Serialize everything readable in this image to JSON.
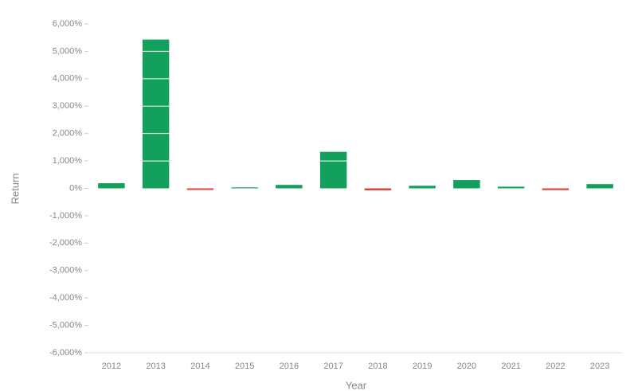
{
  "chart_data": {
    "type": "bar",
    "x_label": "Year",
    "y_label": "Return",
    "categories": [
      "2012",
      "2013",
      "2014",
      "2015",
      "2016",
      "2017",
      "2018",
      "2019",
      "2020",
      "2021",
      "2022",
      "2023"
    ],
    "values": [
      186,
      5429,
      -58,
      35,
      125,
      1331,
      -73,
      95,
      303,
      60,
      -64,
      155
    ],
    "positive_color": "#12a05c",
    "negative_color": "#e0453c",
    "grid_color": "#ffffff",
    "ylim": [
      -6000,
      6000
    ],
    "yticks": [
      {
        "value": -6000,
        "label": "-6,000%"
      },
      {
        "value": -5000,
        "label": "-5,000%"
      },
      {
        "value": -4000,
        "label": "-4,000%"
      },
      {
        "value": -3000,
        "label": "-3,000%"
      },
      {
        "value": -2000,
        "label": "-2,000%"
      },
      {
        "value": -1000,
        "label": "-1,000%"
      },
      {
        "value": 0,
        "label": "0%"
      },
      {
        "value": 1000,
        "label": "1,000%"
      },
      {
        "value": 2000,
        "label": "2,000%"
      },
      {
        "value": 3000,
        "label": "3,000%"
      },
      {
        "value": 4000,
        "label": "4,000%"
      },
      {
        "value": 5000,
        "label": "5,000%"
      },
      {
        "value": 6000,
        "label": "6,000%"
      }
    ],
    "grid": true
  }
}
